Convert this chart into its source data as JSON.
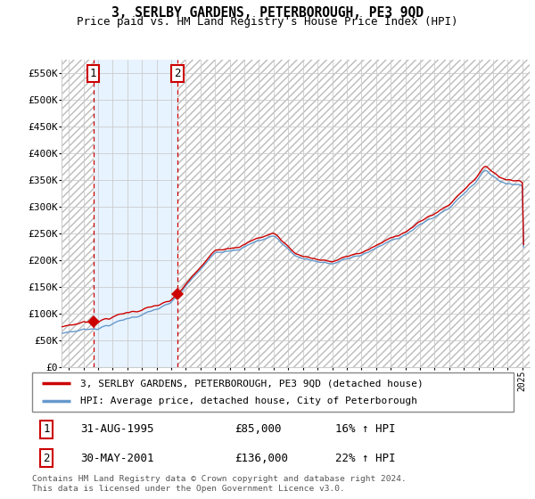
{
  "title": "3, SERLBY GARDENS, PETERBOROUGH, PE3 9QD",
  "subtitle": "Price paid vs. HM Land Registry's House Price Index (HPI)",
  "legend_line1": "3, SERLBY GARDENS, PETERBOROUGH, PE3 9QD (detached house)",
  "legend_line2": "HPI: Average price, detached house, City of Peterborough",
  "footnote": "Contains HM Land Registry data © Crown copyright and database right 2024.\nThis data is licensed under the Open Government Licence v3.0.",
  "sale1_date": "31-AUG-1995",
  "sale1_price": 85000,
  "sale1_hpi": "16% ↑ HPI",
  "sale2_date": "30-MAY-2001",
  "sale2_price": 136000,
  "sale2_hpi": "22% ↑ HPI",
  "sale1_year": 1995.67,
  "sale2_year": 2001.42,
  "price_line_color": "#cc0000",
  "hpi_line_color": "#6699cc",
  "ylim_min": 0,
  "ylim_max": 575000,
  "xlim_min": 1993.5,
  "xlim_max": 2025.5
}
